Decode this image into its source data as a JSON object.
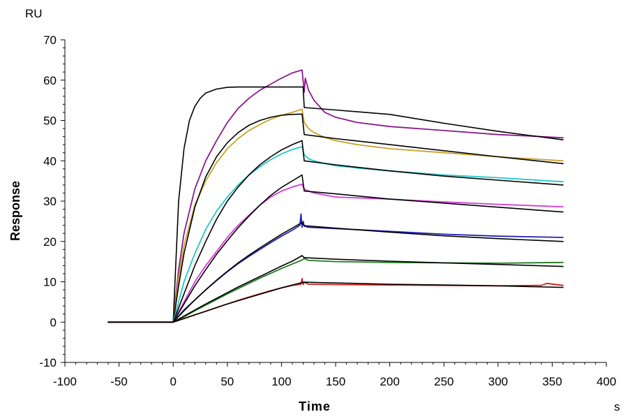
{
  "chart_data": {
    "type": "line",
    "title": "",
    "xlabel": "Time",
    "ylabel": "Response",
    "x_unit": "s",
    "y_unit": "RU",
    "xlim": [
      -100,
      400
    ],
    "ylim": [
      -10,
      70
    ],
    "x_ticks": [
      "-100",
      "-50",
      "0",
      "50",
      "100",
      "150",
      "200",
      "250",
      "300",
      "350",
      "400"
    ],
    "y_ticks": [
      "-10",
      "0",
      "10",
      "20",
      "30",
      "40",
      "50",
      "60",
      "70"
    ],
    "grid": false,
    "legend": "none",
    "series": [
      {
        "color": "#8B1A8B",
        "x": [
          -60,
          -1,
          0,
          5,
          10,
          20,
          30,
          40,
          50,
          60,
          70,
          80,
          90,
          100,
          110,
          119,
          121,
          122,
          125,
          130,
          140,
          150,
          170,
          200,
          250,
          300,
          340,
          360
        ],
        "y": [
          0,
          0,
          0,
          13,
          22,
          33,
          40,
          45,
          49.5,
          53,
          55.5,
          57.5,
          59,
          60.5,
          61.8,
          62.5,
          57,
          60.5,
          57.5,
          55,
          52,
          50.8,
          49.5,
          48.5,
          47.5,
          46.5,
          46,
          45.7
        ]
      },
      {
        "color": "#000000",
        "x": [
          -60,
          0,
          5,
          10,
          15,
          20,
          25,
          30,
          40,
          50,
          60,
          80,
          100,
          119,
          120,
          121,
          150,
          200,
          250,
          300,
          360
        ],
        "y": [
          0,
          0,
          30,
          43,
          50,
          53.5,
          55.5,
          56.8,
          57.8,
          58.2,
          58.3,
          58.3,
          58.3,
          58.3,
          58.3,
          53.2,
          52.6,
          51.5,
          49.3,
          47.3,
          45.2
        ]
      },
      {
        "color": "#C9A227",
        "x": [
          -60,
          0,
          5,
          10,
          20,
          30,
          40,
          50,
          60,
          70,
          80,
          90,
          100,
          110,
          119,
          121,
          125,
          130,
          140,
          150,
          170,
          200,
          250,
          300,
          360
        ],
        "y": [
          0,
          0,
          11,
          19,
          29,
          35,
          39.5,
          43,
          45.5,
          47.5,
          49,
          50.3,
          51.3,
          52,
          52.8,
          49.5,
          48,
          47,
          45.8,
          45,
          44,
          43,
          42,
          41,
          40
        ]
      },
      {
        "color": "#000000",
        "x": [
          -60,
          0,
          5,
          10,
          20,
          30,
          40,
          50,
          60,
          70,
          80,
          90,
          100,
          110,
          119,
          121,
          150,
          200,
          250,
          300,
          360
        ],
        "y": [
          0,
          0,
          9,
          17,
          28.5,
          36,
          41,
          44.5,
          47,
          48.8,
          50,
          50.8,
          51.3,
          51.5,
          51.6,
          46.5,
          45.5,
          44,
          42.5,
          41,
          39.3
        ]
      },
      {
        "color": "#22C7C7",
        "x": [
          -60,
          0,
          10,
          20,
          30,
          40,
          50,
          60,
          70,
          80,
          90,
          100,
          110,
          119,
          121,
          125,
          130,
          140,
          150,
          170,
          200,
          250,
          300,
          360
        ],
        "y": [
          0,
          0,
          10,
          17,
          23,
          27.5,
          31,
          34,
          36.5,
          38.5,
          40.3,
          41.7,
          42.8,
          43.5,
          41.5,
          40.5,
          40,
          39.3,
          38.8,
          38.2,
          37.5,
          36.5,
          35.8,
          34.8
        ]
      },
      {
        "color": "#000000",
        "x": [
          -60,
          0,
          10,
          20,
          30,
          40,
          50,
          60,
          70,
          80,
          90,
          100,
          110,
          119,
          121,
          150,
          200,
          250,
          300,
          360
        ],
        "y": [
          0,
          0,
          7,
          14,
          20,
          25.5,
          30,
          33.5,
          36.5,
          39,
          41,
          42.7,
          44,
          45,
          40,
          39,
          37.5,
          36.2,
          35.2,
          34
        ]
      },
      {
        "color": "#D63AD6",
        "x": [
          -60,
          0,
          10,
          20,
          30,
          40,
          50,
          60,
          70,
          80,
          90,
          100,
          110,
          119,
          121,
          125,
          130,
          140,
          150,
          200,
          250,
          300,
          360
        ],
        "y": [
          0,
          0,
          5,
          10,
          14,
          17.5,
          21,
          24,
          26.5,
          29,
          31,
          32.5,
          33.5,
          34.2,
          33,
          32.5,
          32,
          31.5,
          31,
          30.5,
          29.8,
          29.2,
          28.6
        ]
      },
      {
        "color": "#000000",
        "x": [
          -60,
          0,
          10,
          20,
          30,
          40,
          50,
          60,
          70,
          80,
          90,
          100,
          110,
          119,
          121,
          150,
          200,
          250,
          300,
          360
        ],
        "y": [
          0,
          0,
          4.5,
          9,
          13,
          16.8,
          20.2,
          23.4,
          26.3,
          29,
          31.4,
          33.4,
          35,
          36.5,
          32.5,
          31.8,
          30.5,
          29.5,
          28.5,
          27.3
        ]
      },
      {
        "color": "#2020B8",
        "x": [
          -60,
          0,
          10,
          20,
          30,
          40,
          50,
          60,
          70,
          80,
          90,
          100,
          110,
          117,
          118,
          119,
          120,
          121,
          125,
          150,
          200,
          250,
          300,
          360
        ],
        "y": [
          0,
          0,
          3,
          5.5,
          8,
          10.3,
          12.5,
          14.5,
          16.3,
          18,
          19.7,
          21.3,
          22.8,
          24,
          26.8,
          23.5,
          25,
          23.8,
          23.5,
          23.2,
          22.5,
          21.8,
          21.3,
          21
        ]
      },
      {
        "color": "#000000",
        "x": [
          -60,
          0,
          10,
          20,
          30,
          40,
          50,
          60,
          70,
          80,
          90,
          100,
          110,
          119,
          121,
          150,
          200,
          250,
          300,
          360
        ],
        "y": [
          0,
          0,
          2.8,
          5.5,
          8,
          10.4,
          12.6,
          14.7,
          16.6,
          18.4,
          20.1,
          21.8,
          23.3,
          24.7,
          23.9,
          23.3,
          22.3,
          21.4,
          20.7,
          20
        ]
      },
      {
        "color": "#1E7A1E",
        "x": [
          -60,
          0,
          10,
          20,
          30,
          40,
          50,
          60,
          70,
          80,
          90,
          100,
          110,
          119,
          121,
          125,
          150,
          200,
          250,
          300,
          360
        ],
        "y": [
          0,
          0,
          1.3,
          2.8,
          4.2,
          5.6,
          7,
          8.3,
          9.6,
          10.9,
          12.1,
          13.3,
          14.4,
          15.4,
          15.8,
          15.3,
          15,
          14.8,
          14.7,
          14.6,
          14.8
        ]
      },
      {
        "color": "#000000",
        "x": [
          -60,
          0,
          10,
          20,
          30,
          40,
          50,
          60,
          70,
          80,
          90,
          100,
          110,
          119,
          121,
          150,
          200,
          250,
          300,
          360
        ],
        "y": [
          0,
          0,
          1.5,
          3,
          4.5,
          5.9,
          7.3,
          8.7,
          10,
          11.3,
          12.6,
          13.9,
          15.1,
          16.5,
          16,
          15.6,
          15.1,
          14.7,
          14.3,
          13.8
        ]
      },
      {
        "color": "#D01E1E",
        "x": [
          -60,
          0,
          10,
          20,
          30,
          40,
          50,
          60,
          70,
          80,
          90,
          100,
          110,
          118,
          119,
          120,
          121,
          125,
          150,
          200,
          250,
          300,
          340,
          345,
          360
        ],
        "y": [
          0,
          0,
          0.9,
          1.8,
          2.7,
          3.6,
          4.5,
          5.4,
          6.2,
          7,
          7.8,
          8.5,
          9.1,
          9.4,
          10.8,
          9.3,
          9.9,
          9.4,
          9.3,
          9.2,
          9.1,
          9,
          9.1,
          9.6,
          9.1
        ]
      },
      {
        "color": "#000000",
        "x": [
          -60,
          0,
          10,
          20,
          30,
          40,
          50,
          60,
          70,
          80,
          90,
          100,
          110,
          119,
          121,
          150,
          200,
          250,
          300,
          360
        ],
        "y": [
          0,
          0,
          0.9,
          1.8,
          2.7,
          3.6,
          4.5,
          5.3,
          6.1,
          6.9,
          7.7,
          8.5,
          9.2,
          9.8,
          9.9,
          9.7,
          9.4,
          9.2,
          9,
          8.6
        ]
      }
    ]
  }
}
